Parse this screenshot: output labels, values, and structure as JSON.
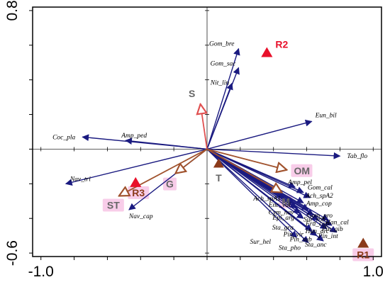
{
  "chart_data": {
    "type": "scatter",
    "title": "",
    "xlabel": "",
    "ylabel": "",
    "xlim": [
      -1.05,
      1.05
    ],
    "ylim": [
      -0.62,
      0.82
    ],
    "x_tick_labels": [
      {
        "value": -1.0,
        "label": "-1.0"
      },
      {
        "value": 1.0,
        "label": "1.0"
      }
    ],
    "y_tick_labels": [
      {
        "value": 0.8,
        "label": "0.8"
      },
      {
        "value": -0.6,
        "label": "-0.6"
      }
    ],
    "colors": {
      "species_arrow": "#1a1a80",
      "env_arrow": "#a0522d",
      "s_arrow": "#e05050",
      "red_marker": "#e8102a",
      "brown_marker": "#8b3a1a",
      "highlight": "#f5b8e0"
    },
    "species": [
      {
        "name": "Gom_bre",
        "x": 0.19,
        "y": 0.58
      },
      {
        "name": "Gom_sac",
        "x": 0.19,
        "y": 0.47
      },
      {
        "name": "Nit_lin",
        "x": 0.15,
        "y": 0.38
      },
      {
        "name": "Eun_bil",
        "x": 0.63,
        "y": 0.16
      },
      {
        "name": "Tab_flo",
        "x": 0.8,
        "y": -0.04
      },
      {
        "name": "Amp_ped",
        "x": -0.49,
        "y": 0.05
      },
      {
        "name": "Coc_pla",
        "x": -0.75,
        "y": 0.07
      },
      {
        "name": "Nav_tri",
        "x": -0.85,
        "y": -0.2
      },
      {
        "name": "Nav_cap",
        "x": -0.47,
        "y": -0.35
      },
      {
        "name": "Amp_pel",
        "x": 0.53,
        "y": -0.22
      },
      {
        "name": "Gom_cal",
        "x": 0.58,
        "y": -0.25
      },
      {
        "name": "Ach_spA2",
        "x": 0.62,
        "y": -0.28
      },
      {
        "name": "Amp_cop",
        "x": 0.58,
        "y": -0.31
      },
      {
        "name": "Ach_spA1",
        "x": 0.46,
        "y": -0.28
      },
      {
        "name": "Enc_vul",
        "x": 0.52,
        "y": -0.31
      },
      {
        "name": "Cym_nav",
        "x": 0.54,
        "y": -0.34
      },
      {
        "name": "Epi_arg",
        "x": 0.56,
        "y": -0.37
      },
      {
        "name": "Gom_pro",
        "x": 0.61,
        "y": -0.35
      },
      {
        "name": "Sur_rob",
        "x": 0.64,
        "y": -0.38
      },
      {
        "name": "Fra_cap",
        "x": 0.67,
        "y": -0.41
      },
      {
        "name": "Sta_gra",
        "x": 0.58,
        "y": -0.4
      },
      {
        "name": "Han_cal",
        "x": 0.73,
        "y": -0.41
      },
      {
        "name": "Pin_gib",
        "x": 0.75,
        "y": -0.44
      },
      {
        "name": "Han_arc",
        "x": 0.72,
        "y": -0.46
      },
      {
        "name": "Pin_vir",
        "x": 0.63,
        "y": -0.47
      },
      {
        "name": "Pin_int",
        "x": 0.78,
        "y": -0.48
      },
      {
        "name": "Pin_sub",
        "x": 0.66,
        "y": -0.5
      },
      {
        "name": "Sur_hel",
        "x": 0.54,
        "y": -0.51
      },
      {
        "name": "Sta_anc",
        "x": 0.7,
        "y": -0.53
      },
      {
        "name": "Sta_pho",
        "x": 0.61,
        "y": -0.54
      }
    ],
    "env_vectors": [
      {
        "name": "S",
        "x": -0.04,
        "y": 0.26,
        "color": "s_arrow"
      },
      {
        "name": "OM",
        "x": 0.48,
        "y": -0.12,
        "color": "env_arrow"
      },
      {
        "name": "M",
        "x": 0.45,
        "y": -0.25,
        "color": "env_arrow"
      },
      {
        "name": "G",
        "x": -0.19,
        "y": -0.14,
        "color": "env_arrow"
      },
      {
        "name": "ST",
        "x": -0.53,
        "y": -0.27,
        "color": "env_arrow"
      }
    ],
    "samples": [
      {
        "name": "R1",
        "x": 0.94,
        "y": -0.54,
        "color": "brown_marker",
        "label_color": "brown_marker"
      },
      {
        "name": "R2",
        "x": 0.36,
        "y": 0.56,
        "color": "red_marker",
        "label_color": "red_marker"
      },
      {
        "name": "R3",
        "x": -0.43,
        "y": -0.19,
        "color": "red_marker",
        "label_color": "brown_marker"
      }
    ],
    "centroids": [
      {
        "name": "T",
        "x": 0.07,
        "y": -0.08,
        "color": "brown_marker"
      }
    ],
    "label_highlights": [
      "OM",
      "M",
      "G",
      "ST",
      "R3",
      "R1"
    ]
  }
}
